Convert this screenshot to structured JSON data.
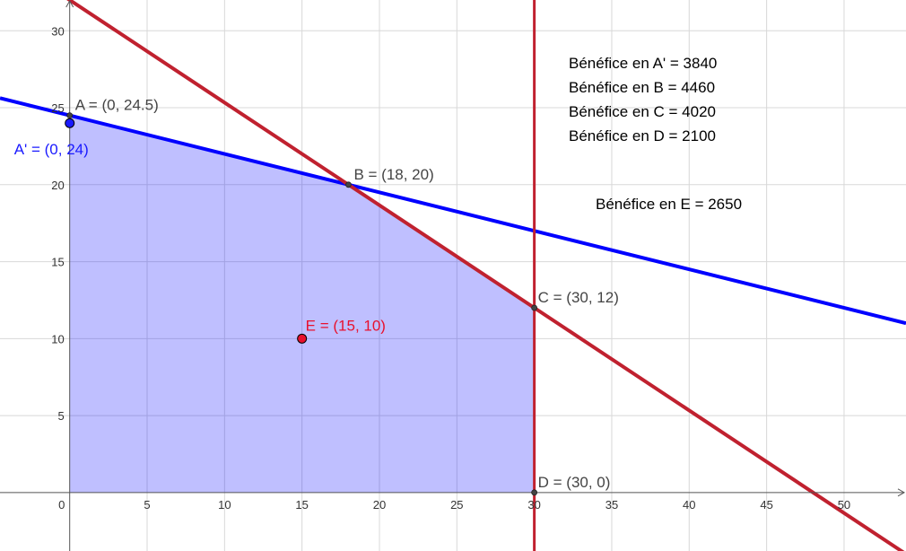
{
  "chart_data": {
    "type": "line",
    "title": "",
    "xlabel": "",
    "ylabel": "",
    "xlim": [
      -4.5,
      54
    ],
    "ylim": [
      -3.8,
      32
    ],
    "grid": true,
    "x_ticks": [
      0,
      5,
      10,
      15,
      20,
      25,
      30,
      35,
      40,
      45,
      50
    ],
    "y_ticks": [
      5,
      10,
      15,
      20,
      25,
      30
    ],
    "lines": [
      {
        "name": "",
        "kind": "line",
        "color": "#0000ff",
        "p1": [
          0,
          24.5
        ],
        "p2": [
          18,
          20
        ]
      },
      {
        "name": "",
        "kind": "line",
        "color": "#c0212f",
        "p1": [
          18,
          20
        ],
        "p2": [
          30,
          12
        ]
      },
      {
        "name": "",
        "kind": "vertical",
        "color": "#c0212f",
        "x": 30
      }
    ],
    "feasible_region": {
      "color": "#0000ff",
      "vertices": [
        [
          0,
          0
        ],
        [
          0,
          24.5
        ],
        [
          18,
          20
        ],
        [
          30,
          12
        ],
        [
          30,
          0
        ]
      ]
    },
    "points": [
      {
        "label": "A = (0, 24.5)",
        "x": 0,
        "y": 24.5,
        "color": "#444444",
        "label_color": "#444444"
      },
      {
        "label": "A' = (0, 24)",
        "x": 0,
        "y": 24,
        "color": "#1a1aff",
        "label_color": "#1a1aff",
        "big": true
      },
      {
        "label": "B = (18, 20)",
        "x": 18,
        "y": 20,
        "color": "#444444",
        "label_color": "#444444"
      },
      {
        "label": "C = (30, 12)",
        "x": 30,
        "y": 12,
        "color": "#444444",
        "label_color": "#444444"
      },
      {
        "label": "D = (30, 0)",
        "x": 30,
        "y": 0,
        "color": "#444444",
        "label_color": "#444444"
      },
      {
        "label": "E = (15, 10)",
        "x": 15,
        "y": 10,
        "color": "#e8112d",
        "label_color": "#e8112d",
        "big": true
      }
    ],
    "annotations": [
      "Bénéfice en A' = 3840",
      "Bénéfice en B = 4460",
      "Bénéfice en C = 4020",
      "Bénéfice en D = 2100",
      "Bénéfice en E = 2650"
    ]
  }
}
